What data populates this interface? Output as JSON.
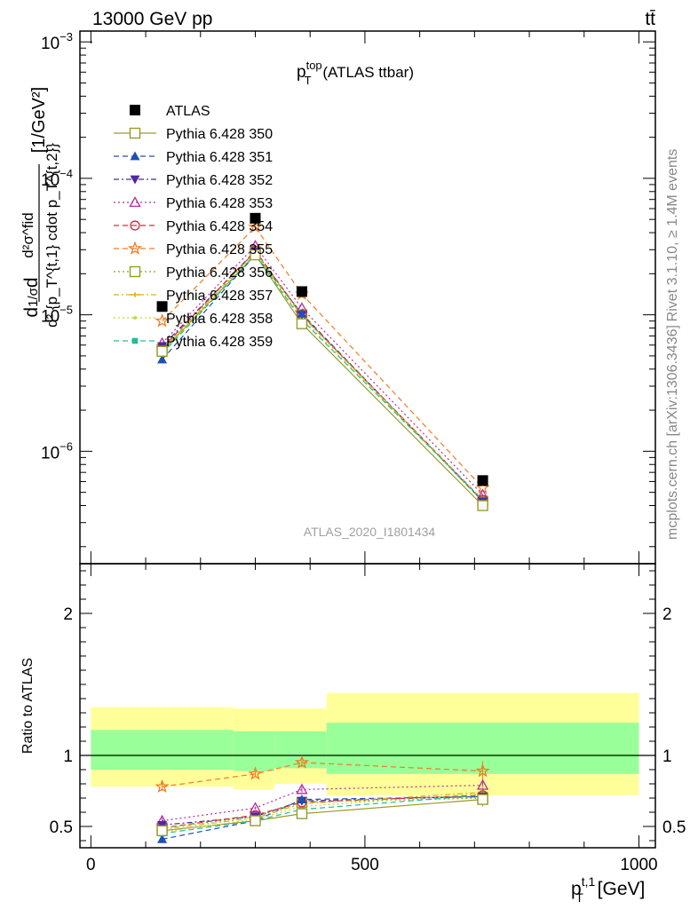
{
  "header": {
    "left": "13000 GeV pp",
    "right": "tt̄"
  },
  "side_text": {
    "rivet": "Rivet 3.1.10, ≥ 1.4M events",
    "mcplots": "mcplots.cern.ch [arXiv:1306.3436]"
  },
  "analysis_label": "ATLAS_2020_I1801434",
  "chart_data": [
    {
      "type": "scatter",
      "title": "p_T^top (ATLAS ttbar)",
      "title_parts": {
        "base": "p",
        "sub": "T",
        "sup": "top",
        "rest": " (ATLAS ttbar)"
      },
      "ylabel": "d²σ^fid / d² {p_T^{t,1} cdot p_T^{t,2}} [1/GeV²]",
      "ylabel_parts": {
        "prefix": "d",
        "frac": "1/σ",
        "d": "d",
        "num": "d²σ^fid",
        "den": "d² {p_T^{t,1} cdot p_T^{t,2}}",
        "unit": "[1/GeV²]"
      },
      "yscale": "log",
      "xlim": [
        -20,
        1030
      ],
      "ylim": [
        1.5e-07,
        0.0012
      ],
      "ytick_labels": [
        {
          "value": 1e-06,
          "mant": "10",
          "exp": "−6"
        },
        {
          "value": 1e-05,
          "mant": "10",
          "exp": "−5"
        },
        {
          "value": 0.0001,
          "mant": "10",
          "exp": "−4"
        },
        {
          "value": 0.001,
          "mant": "10",
          "exp": "−3"
        }
      ],
      "legend_position": "top-left",
      "series": [
        {
          "name": "ATLAS",
          "color": "#000000",
          "marker": "square-filled",
          "dash": "none",
          "x": [
            130,
            300,
            385,
            715
          ],
          "y": [
            1.15e-05,
            5.1e-05,
            1.48e-05,
            6.1e-07
          ]
        },
        {
          "name": "Pythia 6.428 350",
          "color": "#9a9a2a",
          "marker": "square-open",
          "dash": "solid",
          "x": [
            130,
            300,
            385,
            715
          ],
          "y": [
            5.4e-06,
            2.75e-05,
            8.6e-06,
            4e-07
          ]
        },
        {
          "name": "Pythia 6.428 351",
          "color": "#1f4fb4",
          "marker": "triangle-up-filled",
          "dash": "dashed",
          "x": [
            130,
            300,
            385,
            715
          ],
          "y": [
            4.7e-06,
            2.75e-05,
            1.02e-05,
            4.3e-07
          ]
        },
        {
          "name": "Pythia 6.428 352",
          "color": "#4b2a9e",
          "marker": "triangle-down-filled",
          "dash": "dashdot",
          "x": [
            130,
            300,
            385,
            715
          ],
          "y": [
            5.9e-06,
            2.9e-05,
            1e-05,
            4.3e-07
          ]
        },
        {
          "name": "Pythia 6.428 353",
          "color": "#b02fa0",
          "marker": "triangle-up-open",
          "dash": "dotted",
          "x": [
            130,
            300,
            385,
            715
          ],
          "y": [
            6.2e-06,
            3.2e-05,
            1.12e-05,
            4.8e-07
          ]
        },
        {
          "name": "Pythia 6.428 354",
          "color": "#d42a3c",
          "marker": "circle-open",
          "dash": "dashed",
          "x": [
            130,
            300,
            385,
            715
          ],
          "y": [
            5.7e-06,
            2.95e-05,
            1e-05,
            4.4e-07
          ]
        },
        {
          "name": "Pythia 6.428 355",
          "color": "#f07c24",
          "marker": "star-open",
          "dash": "dashed",
          "x": [
            130,
            300,
            385,
            715
          ],
          "y": [
            9e-06,
            4.4e-05,
            1.42e-05,
            5.4e-07
          ]
        },
        {
          "name": "Pythia 6.428 356",
          "color": "#8ea320",
          "marker": "square-open",
          "dash": "dotted",
          "x": [
            130,
            300,
            385,
            715
          ],
          "y": [
            5.6e-06,
            2.9e-05,
            1e-05,
            4.3e-07
          ]
        },
        {
          "name": "Pythia 6.428 357",
          "color": "#d6b016",
          "marker": "cross",
          "dash": "dashdot",
          "x": [
            130,
            300,
            385,
            715
          ],
          "y": [
            5.5e-06,
            2.85e-05,
            9.8e-06,
            4.4e-07
          ]
        },
        {
          "name": "Pythia 6.428 358",
          "color": "#c8d42c",
          "marker": "dot",
          "dash": "dotted",
          "x": [
            130,
            300,
            385,
            715
          ],
          "y": [
            5.3e-06,
            2.8e-05,
            9.4e-06,
            4.4e-07
          ]
        },
        {
          "name": "Pythia 6.428 359",
          "color": "#1fbf9a",
          "marker": "square-small-filled",
          "dash": "dashed",
          "x": [
            130,
            300,
            385,
            715
          ],
          "y": [
            5.2e-06,
            2.75e-05,
            9.2e-06,
            4.4e-07
          ]
        }
      ]
    },
    {
      "type": "scatter",
      "xlabel": "p_T^{t,1} [GeV]",
      "xlabel_parts": {
        "base": "p",
        "sub": "T",
        "sup": "t,1",
        "rest": " [GeV]"
      },
      "ylabel": "Ratio to ATLAS",
      "xlim": [
        -20,
        1030
      ],
      "ylim": [
        0.35,
        2.35
      ],
      "xticks": [
        0,
        500,
        1000
      ],
      "xtick_labels": [
        "0",
        "500",
        "1000"
      ],
      "yticks": [
        0.5,
        1,
        2
      ],
      "ytick_labels": [
        "0.5",
        "1",
        "2"
      ],
      "reference_line": 1,
      "bands": [
        {
          "x0": 0,
          "x1": 260,
          "outer": [
            0.78,
            1.34
          ],
          "inner": [
            0.9,
            1.18
          ]
        },
        {
          "x0": 260,
          "x1": 335,
          "outer": [
            0.76,
            1.33
          ],
          "inner": [
            0.89,
            1.17
          ]
        },
        {
          "x0": 335,
          "x1": 430,
          "outer": [
            0.8,
            1.33
          ],
          "inner": [
            0.91,
            1.17
          ]
        },
        {
          "x0": 430,
          "x1": 1000,
          "outer": [
            0.72,
            1.44
          ],
          "inner": [
            0.87,
            1.23
          ]
        }
      ],
      "band_colors": {
        "outer": "#ffff99",
        "inner": "#99ff99"
      },
      "series": [
        {
          "name": "Pythia 6.428 350",
          "x": [
            130,
            300,
            385,
            715
          ],
          "y": [
            0.47,
            0.54,
            0.59,
            0.69
          ],
          "yerr": [
            0.02,
            0.01,
            0.02,
            0.05
          ]
        },
        {
          "name": "Pythia 6.428 351",
          "x": [
            130,
            300,
            385,
            715
          ],
          "y": [
            0.41,
            0.54,
            0.69,
            0.71
          ],
          "yerr": [
            0.02,
            0.01,
            0.02,
            0.05
          ]
        },
        {
          "name": "Pythia 6.428 352",
          "x": [
            130,
            300,
            385,
            715
          ],
          "y": [
            0.51,
            0.57,
            0.68,
            0.71
          ],
          "yerr": [
            0.02,
            0.01,
            0.02,
            0.05
          ]
        },
        {
          "name": "Pythia 6.428 353",
          "x": [
            130,
            300,
            385,
            715
          ],
          "y": [
            0.54,
            0.63,
            0.76,
            0.79
          ],
          "yerr": [
            0.02,
            0.01,
            0.02,
            0.05
          ]
        },
        {
          "name": "Pythia 6.428 354",
          "x": [
            130,
            300,
            385,
            715
          ],
          "y": [
            0.49,
            0.58,
            0.67,
            0.72
          ],
          "yerr": [
            0.02,
            0.01,
            0.02,
            0.05
          ]
        },
        {
          "name": "Pythia 6.428 355",
          "x": [
            130,
            300,
            385,
            715
          ],
          "y": [
            0.78,
            0.87,
            0.95,
            0.89
          ],
          "yerr": [
            0.03,
            0.02,
            0.03,
            0.07
          ]
        },
        {
          "name": "Pythia 6.428 356",
          "x": [
            130,
            300,
            385,
            715
          ],
          "y": [
            0.49,
            0.57,
            0.67,
            0.7
          ],
          "yerr": [
            0.02,
            0.01,
            0.02,
            0.05
          ]
        },
        {
          "name": "Pythia 6.428 357",
          "x": [
            130,
            300,
            385,
            715
          ],
          "y": [
            0.48,
            0.56,
            0.66,
            0.74
          ],
          "yerr": [
            0.02,
            0.01,
            0.02,
            0.05
          ]
        },
        {
          "name": "Pythia 6.428 358",
          "x": [
            130,
            300,
            385,
            715
          ],
          "y": [
            0.46,
            0.55,
            0.64,
            0.73
          ],
          "yerr": [
            0.02,
            0.01,
            0.02,
            0.05
          ]
        },
        {
          "name": "Pythia 6.428 359",
          "x": [
            130,
            300,
            385,
            715
          ],
          "y": [
            0.45,
            0.54,
            0.62,
            0.72
          ],
          "yerr": [
            0.02,
            0.01,
            0.02,
            0.05
          ]
        }
      ]
    }
  ]
}
